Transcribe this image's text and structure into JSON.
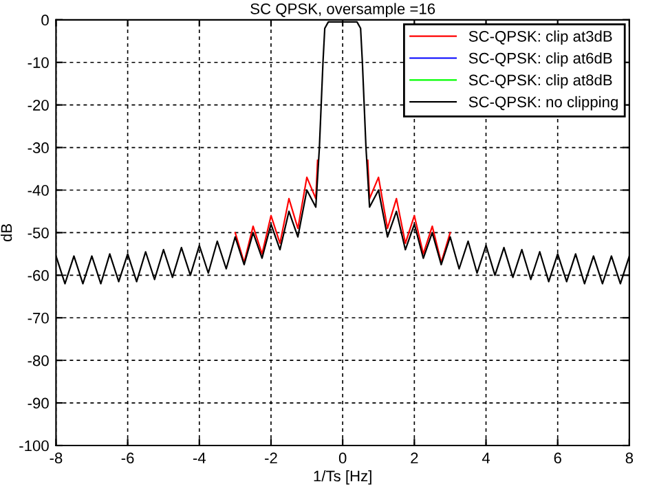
{
  "chart_data": {
    "type": "line",
    "title": "SC QPSK, oversample =16",
    "xlabel": "1/Ts [Hz]",
    "ylabel": "dB",
    "xlim": [
      -8,
      8
    ],
    "ylim": [
      -100,
      0
    ],
    "xticks": [
      -8,
      -6,
      -4,
      -2,
      0,
      2,
      4,
      6,
      8
    ],
    "yticks": [
      -100,
      -90,
      -80,
      -70,
      -60,
      -50,
      -40,
      -30,
      -20,
      -10,
      0
    ],
    "grid": true,
    "legend": "top right",
    "line_style": "solid",
    "marker": "none",
    "series": [
      {
        "name": "SC-QPSK: clip at3dB",
        "color": "#ff0000",
        "x": [
          -3,
          -2.75,
          -2.5,
          -2.25,
          -2,
          -1.75,
          -1.5,
          -1.25,
          -1,
          -0.75,
          -0.7,
          0,
          0.7,
          0.75,
          1,
          1.25,
          1.5,
          1.75,
          2,
          2.25,
          2.5,
          2.75,
          3
        ],
        "values": [
          -50,
          -57,
          -48.5,
          -55,
          -46,
          -52.5,
          -42,
          -49,
          -37,
          -42,
          -33,
          null,
          -33,
          -42,
          -37,
          -49,
          -42,
          -52.5,
          -46,
          -55,
          -48.5,
          -57,
          -50
        ]
      },
      {
        "name": "SC-QPSK: clip at6dB",
        "color": "#0000ff"
      },
      {
        "name": "SC-QPSK: clip at8dB",
        "color": "#00ff00"
      },
      {
        "name": "SC-QPSK: no clipping",
        "color": "#000000",
        "x": [
          -8,
          -7.75,
          -7.5,
          -7.25,
          -7,
          -6.75,
          -6.5,
          -6.25,
          -6,
          -5.75,
          -5.5,
          -5.25,
          -5,
          -4.75,
          -4.5,
          -4.25,
          -4,
          -3.75,
          -3.5,
          -3.25,
          -3,
          -2.75,
          -2.5,
          -2.25,
          -2,
          -1.75,
          -1.5,
          -1.25,
          -1,
          -0.75,
          -0.65,
          -0.6,
          -0.55,
          -0.5,
          -0.4,
          0,
          0.4,
          0.5,
          0.55,
          0.6,
          0.65,
          0.75,
          1,
          1.25,
          1.5,
          1.75,
          2,
          2.25,
          2.5,
          2.75,
          3,
          3.25,
          3.5,
          3.75,
          4,
          4.25,
          4.5,
          4.75,
          5,
          5.25,
          5.5,
          5.75,
          6,
          6.25,
          6.5,
          6.75,
          7,
          7.25,
          7.5,
          7.75,
          8
        ],
        "values": [
          -55.5,
          -62,
          -55.5,
          -62,
          -55.5,
          -62,
          -55,
          -61.5,
          -55,
          -61.5,
          -54.5,
          -61,
          -54,
          -60.5,
          -53.5,
          -60,
          -53,
          -59.5,
          -52,
          -58.5,
          -51,
          -57.5,
          -50,
          -56,
          -48,
          -54,
          -45,
          -51,
          -40,
          -44,
          -30,
          -20,
          -10,
          -2,
          -0.5,
          -0.5,
          -0.5,
          -2,
          -10,
          -20,
          -30,
          -44,
          -40,
          -51,
          -45,
          -54,
          -48,
          -56,
          -50,
          -57.5,
          -51,
          -58.5,
          -52,
          -59.5,
          -53,
          -60,
          -53.5,
          -60.5,
          -54,
          -61,
          -54.5,
          -61.5,
          -55,
          -61.5,
          -55,
          -62,
          -55.5,
          -62,
          -55.5,
          -62,
          -55.5
        ]
      }
    ]
  }
}
